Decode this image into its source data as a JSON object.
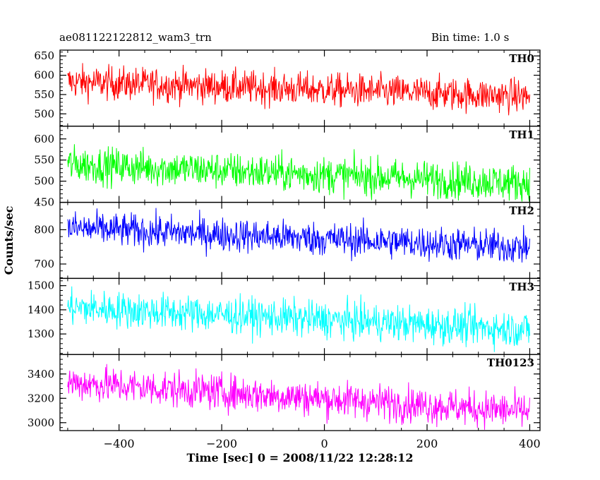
{
  "header": {
    "title": "ae081122122812_wam3_trn",
    "bin_time": "Bin time: 1.0 s"
  },
  "chart_data": {
    "type": "line",
    "title": "ae081122122812_wam3_trn",
    "subtitle": "Bin time: 1.0 s",
    "xlabel": "Time [sec] 0 = 2008/11/22 12:28:12",
    "ylabel": "Counts/sec",
    "xlim": [
      -515,
      420
    ],
    "x_ticks": [
      -400,
      -200,
      0,
      200,
      400
    ],
    "x_tick_labels": [
      "−400",
      "−200",
      "0",
      "200",
      "400"
    ],
    "x_start": -500,
    "x_end": 400,
    "x_step": 1,
    "grid": false,
    "panels": [
      {
        "name": "TH0",
        "color": "#ff0000",
        "ylim": [
          468,
          665
        ],
        "y_ticks": [
          500,
          550,
          600,
          650
        ],
        "start_mean": 583,
        "end_mean": 545,
        "amplitude": 22
      },
      {
        "name": "TH1",
        "color": "#00ff00",
        "ylim": [
          450,
          630
        ],
        "y_ticks": [
          450,
          500,
          550,
          600
        ],
        "start_mean": 540,
        "end_mean": 495,
        "amplitude": 22
      },
      {
        "name": "TH2",
        "color": "#0000ff",
        "ylim": [
          658,
          880
        ],
        "y_ticks": [
          700,
          800
        ],
        "start_mean": 805,
        "end_mean": 748,
        "amplitude": 25
      },
      {
        "name": "TH3",
        "color": "#00ffff",
        "ylim": [
          1215,
          1530
        ],
        "y_ticks": [
          1300,
          1400,
          1500
        ],
        "start_mean": 1410,
        "end_mean": 1318,
        "amplitude": 38
      },
      {
        "name": "TH0123",
        "color": "#ff00ff",
        "ylim": [
          2935,
          3560
        ],
        "y_ticks": [
          3000,
          3200,
          3400
        ],
        "start_mean": 3330,
        "end_mean": 3090,
        "amplitude": 75
      }
    ]
  }
}
